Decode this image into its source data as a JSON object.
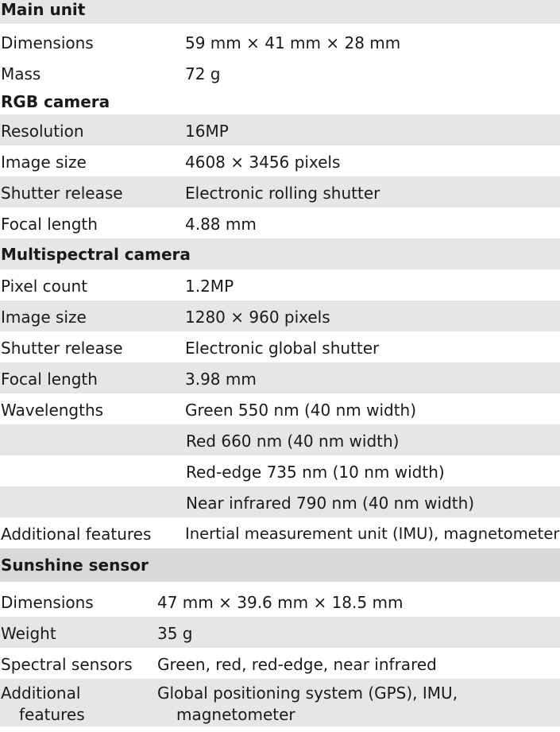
{
  "sections": {
    "main_unit": {
      "title": "Main unit",
      "rows": [
        {
          "label": "Dimensions",
          "value": "59 mm × 41 mm × 28 mm"
        },
        {
          "label": "Mass",
          "value": "72 g"
        }
      ]
    },
    "rgb_camera": {
      "title": "RGB camera",
      "rows": [
        {
          "label": "Resolution",
          "value": "16MP"
        },
        {
          "label": "Image size",
          "value": "4608 × 3456 pixels"
        },
        {
          "label": "Shutter release",
          "value": "Electronic rolling shutter"
        },
        {
          "label": "Focal length",
          "value": "4.88 mm"
        }
      ]
    },
    "multispectral_camera": {
      "title": "Multispectral camera",
      "rows": [
        {
          "label": "Pixel count",
          "value": "1.2MP"
        },
        {
          "label": "Image size",
          "value": "1280 × 960 pixels"
        },
        {
          "label": "Shutter release",
          "value": "Electronic global shutter"
        },
        {
          "label": "Focal length",
          "value": "3.98 mm"
        },
        {
          "label": "Wavelengths",
          "value": "Green 550 nm (40 nm width)"
        },
        {
          "label": "",
          "value": "Red 660 nm (40 nm width)"
        },
        {
          "label": "",
          "value": "Red-edge 735 nm (10 nm width)"
        },
        {
          "label": "",
          "value": "Near infrared 790 nm (40 nm width)"
        },
        {
          "label": "Additional features",
          "value": "Inertial measurement unit (IMU), magnetometer"
        }
      ]
    },
    "sunshine_sensor": {
      "title": "Sunshine sensor",
      "rows": [
        {
          "label": "Dimensions",
          "value": "47 mm × 39.6 mm × 18.5 mm"
        },
        {
          "label": "Weight",
          "value": "35 g"
        },
        {
          "label": "Spectral sensors",
          "value": "Green, red, red-edge, near infrared"
        },
        {
          "label_line1": "Additional",
          "label_line2": "features",
          "value_line1": "Global positioning system (GPS), IMU,",
          "value_line2": "magnetometer"
        }
      ]
    }
  }
}
